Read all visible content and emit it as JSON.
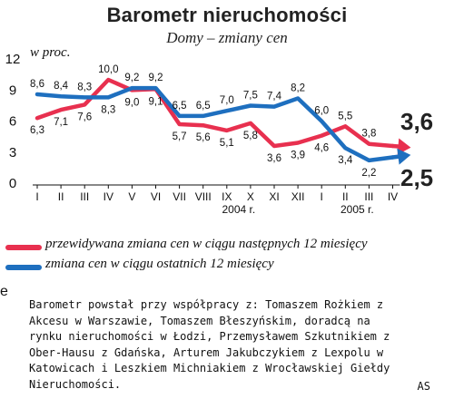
{
  "chart_data": {
    "type": "line",
    "title": "Barometr nieruchomości",
    "subtitle": "Domy – zmiany cen",
    "ylabel": "w proc.",
    "ylim": [
      0,
      12
    ],
    "yticks": [
      0,
      3,
      6,
      9,
      12
    ],
    "categories": [
      "I",
      "II",
      "III",
      "IV",
      "V",
      "VI",
      "VII",
      "VIII",
      "IX",
      "X",
      "XI",
      "XII",
      "I",
      "II",
      "III",
      "IV"
    ],
    "year_labels": [
      {
        "text": "2004 r.",
        "between": [
          6,
          11
        ]
      },
      {
        "text": "2005 r.",
        "between": [
          12,
          15
        ]
      }
    ],
    "series": [
      {
        "name": "przewidywana zmiana cen w ciągu następnych 12 miesięcy",
        "color": "#e8304f",
        "values": [
          6.3,
          7.1,
          7.6,
          10.0,
          9.0,
          9.1,
          5.7,
          5.6,
          5.1,
          5.8,
          3.6,
          3.9,
          4.6,
          5.5,
          3.8,
          3.6
        ],
        "labels": [
          "6,3",
          "7,1",
          "7,6",
          "10,0",
          "9,0",
          "9,1",
          "5,7",
          "5,6",
          "5,1",
          "5,8",
          "3,6",
          "3,9",
          "4,6",
          "5,5",
          "3,8",
          ""
        ],
        "end_label": "3,6"
      },
      {
        "name": "zmiana cen w ciągu ostatnich 12 miesięcy",
        "color": "#1e6fbf",
        "values": [
          8.6,
          8.4,
          8.3,
          8.3,
          9.2,
          9.2,
          6.5,
          6.5,
          7.0,
          7.5,
          7.4,
          8.2,
          6.0,
          3.4,
          2.2,
          2.5
        ],
        "labels": [
          "8,6",
          "8,4",
          "8,3",
          "8,3",
          "9,2",
          "9,2",
          "6,5",
          "6,5",
          "7,0",
          "7,5",
          "7,4",
          "8,2",
          "6,0",
          "3,4",
          "2,2",
          ""
        ],
        "end_label": "2,5"
      }
    ],
    "grid": false
  },
  "note": {
    "lines": [
      "Barometr powstał przy współpracy z: Tomaszem Rożkiem z",
      "Akcesu w Warszawie, Tomaszem Błeszyńskim, doradcą na",
      "rynku nieruchomości w Łodzi, Przemysławem Szkutnikiem z",
      "Ober-Hausu z Gdańska, Arturem Jakubczykiem z Lexpolu w",
      "Katowicach i Leszkiem Michniakiem z Wrocławskiej Giełdy",
      "Nieruchomości."
    ],
    "author": "AS"
  },
  "edge_fragment": "e"
}
